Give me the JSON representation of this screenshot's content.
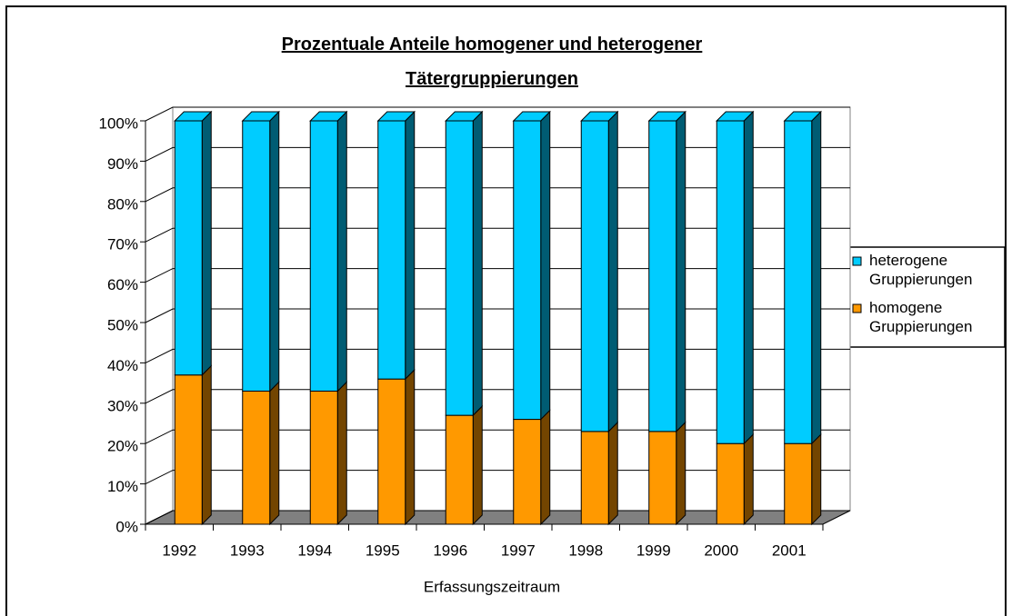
{
  "chart_data": {
    "type": "bar",
    "stacked": true,
    "title": "Prozentuale Anteile homogener und heterogener Tätergruppierungen",
    "x_label": "Erfassungszeitraum",
    "categories": [
      "1992",
      "1993",
      "1994",
      "1995",
      "1996",
      "1997",
      "1998",
      "1999",
      "2000",
      "2001"
    ],
    "series": [
      {
        "name": "homogene Gruppierungen",
        "color": "#ff9900",
        "values": [
          37,
          33,
          33,
          36,
          27,
          26,
          23,
          23,
          20,
          20
        ]
      },
      {
        "name": "heterogene Gruppierungen",
        "color": "#00ccff",
        "values": [
          63,
          67,
          67,
          64,
          73,
          74,
          77,
          77,
          80,
          80
        ]
      }
    ],
    "ylim": [
      0,
      100
    ],
    "yticks": [
      {
        "value": 0,
        "label": "0%"
      },
      {
        "value": 10,
        "label": "10%"
      },
      {
        "value": 20,
        "label": "20%"
      },
      {
        "value": 30,
        "label": "30%"
      },
      {
        "value": 40,
        "label": "40%"
      },
      {
        "value": 50,
        "label": "50%"
      },
      {
        "value": 60,
        "label": "60%"
      },
      {
        "value": 70,
        "label": "70%"
      },
      {
        "value": 80,
        "label": "80%"
      },
      {
        "value": 90,
        "label": "90%"
      },
      {
        "value": 100,
        "label": "100%"
      }
    ],
    "grid": true,
    "legend": "right"
  }
}
